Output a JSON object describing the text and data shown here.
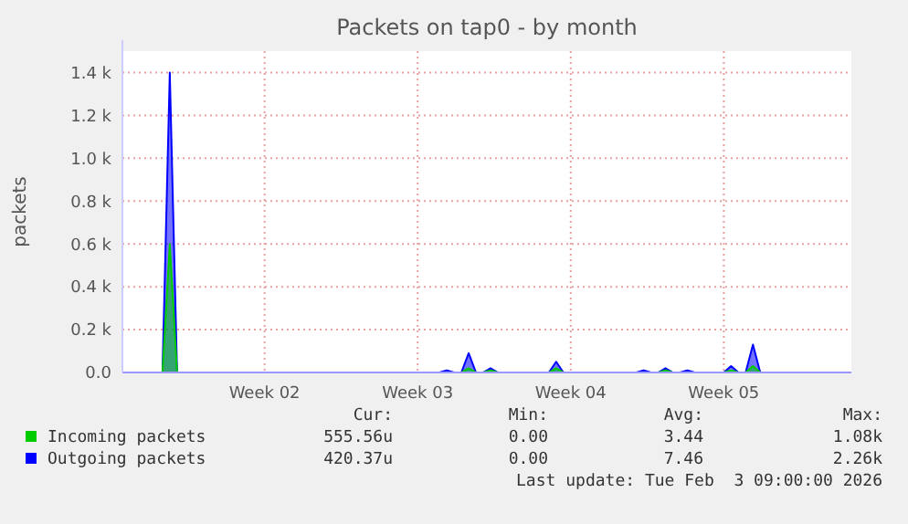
{
  "chart_data": {
    "type": "area",
    "title": "Packets on tap0 - by month",
    "ylabel": "packets",
    "categories": [
      null,
      null,
      null,
      null,
      null,
      null,
      null,
      null,
      null,
      null,
      null,
      null,
      null,
      null,
      null,
      null,
      null,
      null,
      null,
      "Week 02",
      null,
      null,
      null,
      null,
      null,
      null,
      null,
      null,
      null,
      null,
      null,
      null,
      null,
      null,
      null,
      null,
      null,
      null,
      null,
      null,
      "Week 03",
      null,
      null,
      null,
      null,
      null,
      null,
      null,
      null,
      null,
      null,
      null,
      null,
      null,
      null,
      null,
      null,
      null,
      null,
      null,
      null,
      "Week 04",
      null,
      null,
      null,
      null,
      null,
      null,
      null,
      null,
      null,
      null,
      null,
      null,
      null,
      null,
      null,
      null,
      null,
      null,
      null,
      null,
      "Week 05",
      null,
      null,
      null,
      null,
      null,
      null,
      null,
      null,
      null,
      null,
      null,
      null,
      null,
      null,
      null,
      null,
      null
    ],
    "series": [
      {
        "name": "Outgoing packets",
        "color": "#0000ff",
        "values": [
          0,
          0,
          0,
          0,
          0,
          0,
          1400,
          0,
          0,
          0,
          0,
          0,
          0,
          0,
          0,
          0,
          0,
          0,
          0,
          0,
          0,
          0,
          0,
          0,
          0,
          0,
          0,
          0,
          0,
          0,
          0,
          0,
          0,
          0,
          0,
          0,
          0,
          0,
          0,
          0,
          0,
          0,
          0,
          0,
          10,
          0,
          0,
          90,
          0,
          0,
          20,
          0,
          0,
          0,
          0,
          0,
          0,
          0,
          0,
          50,
          0,
          0,
          0,
          0,
          0,
          0,
          0,
          0,
          0,
          0,
          0,
          10,
          0,
          0,
          20,
          0,
          0,
          10,
          0,
          0,
          0,
          0,
          0,
          30,
          0,
          0,
          130,
          0,
          0,
          0,
          0,
          0,
          0,
          0,
          0,
          0,
          0,
          0,
          0,
          0
        ]
      },
      {
        "name": "Incoming packets",
        "color": "#00cc00",
        "values": [
          0,
          0,
          0,
          0,
          0,
          0,
          600,
          0,
          0,
          0,
          0,
          0,
          0,
          0,
          0,
          0,
          0,
          0,
          0,
          0,
          0,
          0,
          0,
          0,
          0,
          0,
          0,
          0,
          0,
          0,
          0,
          0,
          0,
          0,
          0,
          0,
          0,
          0,
          0,
          0,
          0,
          0,
          0,
          0,
          0,
          0,
          0,
          20,
          0,
          0,
          10,
          0,
          0,
          0,
          0,
          0,
          0,
          0,
          0,
          20,
          0,
          0,
          0,
          0,
          0,
          0,
          0,
          0,
          0,
          0,
          0,
          0,
          0,
          0,
          10,
          0,
          0,
          0,
          0,
          0,
          0,
          0,
          0,
          10,
          0,
          0,
          30,
          0,
          0,
          0,
          0,
          0,
          0,
          0,
          0,
          0,
          0,
          0,
          0,
          0
        ]
      }
    ],
    "ylim": [
      0,
      1500
    ],
    "yticks": [
      {
        "value": 0,
        "label": "0.0"
      },
      {
        "value": 200,
        "label": "0.2 k"
      },
      {
        "value": 400,
        "label": "0.4 k"
      },
      {
        "value": 600,
        "label": "0.6 k"
      },
      {
        "value": 800,
        "label": "0.8 k"
      },
      {
        "value": 1000,
        "label": "1.0 k"
      },
      {
        "value": 1200,
        "label": "1.2 k"
      },
      {
        "value": 1400,
        "label": "1.4 k"
      }
    ],
    "grid": true,
    "legend": "bottom",
    "annotations": [
      "Cur:",
      "Min:",
      "Avg:",
      "Max:",
      "555.56u",
      "0.00",
      "3.44",
      "1.08k",
      "420.37u",
      "0.00",
      "7.46",
      "2.26k",
      "Last update: Tue Feb  3 09:00:00 2026"
    ]
  }
}
